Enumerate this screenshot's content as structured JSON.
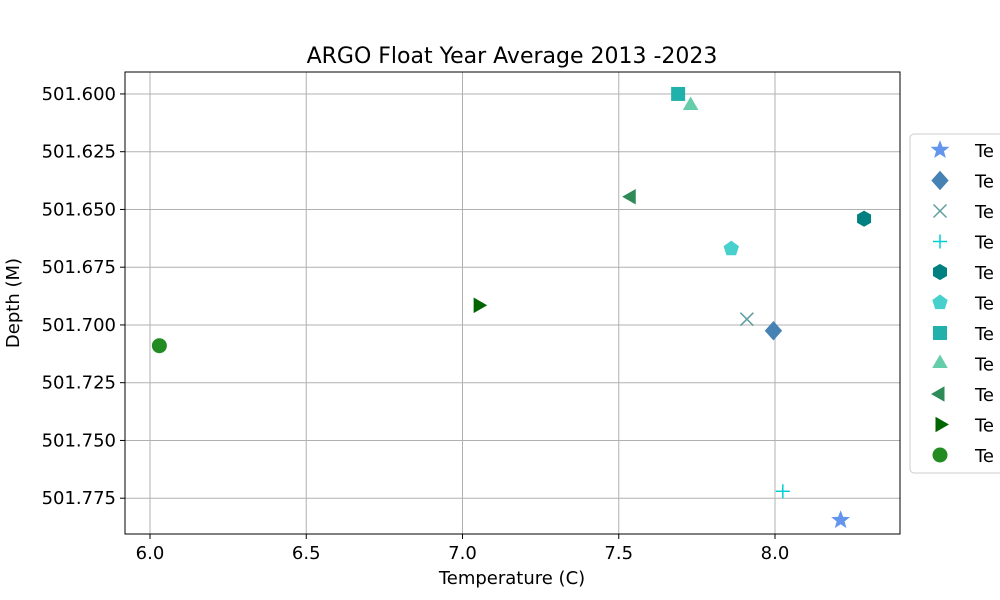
{
  "chart_data": {
    "type": "scatter",
    "title": "ARGO Float Year Average 2013 -2023",
    "xlabel": "Temperature (C)",
    "ylabel": "Depth (M)",
    "xlim": [
      5.92,
      8.4
    ],
    "ylim": [
      501.7905,
      501.5905
    ],
    "y_inverted": true,
    "grid": true,
    "legend_position": "right, outside plot (clipped)",
    "x_ticks": [
      "6.0",
      "6.5",
      "7.0",
      "7.5",
      "8.0"
    ],
    "x_tick_values": [
      6.0,
      6.5,
      7.0,
      7.5,
      8.0
    ],
    "y_ticks": [
      "501.600",
      "501.625",
      "501.650",
      "501.675",
      "501.700",
      "501.725",
      "501.750",
      "501.775"
    ],
    "y_tick_values": [
      501.6,
      501.625,
      501.65,
      501.675,
      501.7,
      501.725,
      501.75,
      501.775
    ],
    "series": [
      {
        "name": "Te",
        "marker": "star",
        "color": "#6495ED",
        "x": 8.21,
        "y": 501.7845
      },
      {
        "name": "Te",
        "marker": "diamond",
        "color": "#4682B4",
        "x": 7.995,
        "y": 501.7025
      },
      {
        "name": "Te",
        "marker": "x",
        "color": "#5F9EA0",
        "x": 7.91,
        "y": 501.6975
      },
      {
        "name": "Te",
        "marker": "plus",
        "color": "#00CED1",
        "x": 8.025,
        "y": 501.772
      },
      {
        "name": "Te",
        "marker": "hexagon",
        "color": "#008080",
        "x": 8.285,
        "y": 501.654
      },
      {
        "name": "Te",
        "marker": "pentagon",
        "color": "#48D1CC",
        "x": 7.86,
        "y": 501.667
      },
      {
        "name": "Te",
        "marker": "square",
        "color": "#20B2AA",
        "x": 7.69,
        "y": 501.6
      },
      {
        "name": "Te",
        "marker": "triangle-up",
        "color": "#66CDAA",
        "x": 7.73,
        "y": 501.605
      },
      {
        "name": "Te",
        "marker": "triangle-left",
        "color": "#2E8B57",
        "x": 7.54,
        "y": 501.6445
      },
      {
        "name": "Te",
        "marker": "triangle-right",
        "color": "#006400",
        "x": 7.05,
        "y": 501.6915
      },
      {
        "name": "Te",
        "marker": "circle",
        "color": "#228B22",
        "x": 6.03,
        "y": 501.709
      }
    ]
  }
}
